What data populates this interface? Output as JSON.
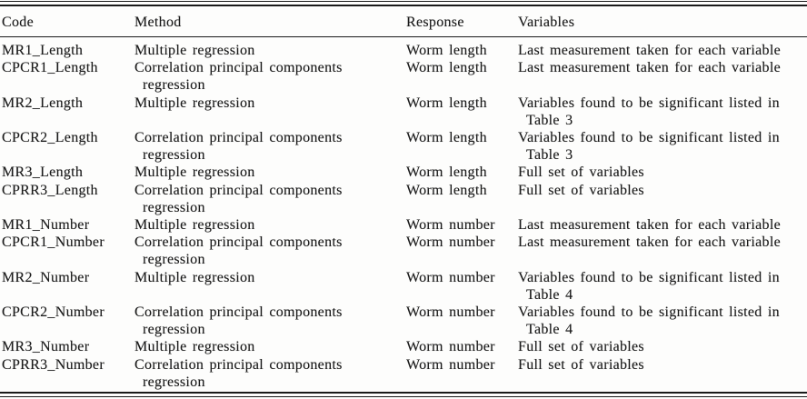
{
  "table": {
    "columns": [
      {
        "label": "Code"
      },
      {
        "label": "Method"
      },
      {
        "label": "Response"
      },
      {
        "label": "Variables"
      }
    ],
    "rows": [
      {
        "code": "MR1_Length",
        "method": "Multiple regression",
        "response": "Worm length",
        "variables": "Last measurement taken for each variable"
      },
      {
        "code": "CPCR1_Length",
        "method": "Correlation principal components\nregression",
        "response": "Worm length",
        "variables": "Last measurement taken for each variable"
      },
      {
        "code": "MR2_Length",
        "method": "Multiple regression",
        "response": "Worm length",
        "variables": "Variables found to be significant listed in\nTable 3"
      },
      {
        "code": "CPCR2_Length",
        "method": "Correlation principal components\nregression",
        "response": "Worm length",
        "variables": "Variables found to be significant listed in\nTable 3"
      },
      {
        "code": "MR3_Length",
        "method": "Multiple regression",
        "response": "Worm length",
        "variables": "Full set of variables"
      },
      {
        "code": "CPRR3_Length",
        "method": "Correlation principal components\nregression",
        "response": "Worm length",
        "variables": "Full set of variables"
      },
      {
        "code": "MR1_Number",
        "method": "Multiple regression",
        "response": "Worm number",
        "variables": "Last measurement taken for each variable"
      },
      {
        "code": "CPCR1_Number",
        "method": "Correlation principal components\nregression",
        "response": "Worm number",
        "variables": "Last measurement taken for each variable"
      },
      {
        "code": "MR2_Number",
        "method": "Multiple regression",
        "response": "Worm number",
        "variables": "Variables found to be significant listed in\nTable 4"
      },
      {
        "code": "CPCR2_Number",
        "method": "Correlation principal components\nregression",
        "response": "Worm number",
        "variables": "Variables found to be significant listed in\nTable 4"
      },
      {
        "code": "MR3_Number",
        "method": "Multiple regression",
        "response": "Worm number",
        "variables": "Full set of variables"
      },
      {
        "code": "CPRR3_Number",
        "method": "Correlation principal components\nregression",
        "response": "Worm number",
        "variables": "Full set of variables"
      }
    ]
  }
}
